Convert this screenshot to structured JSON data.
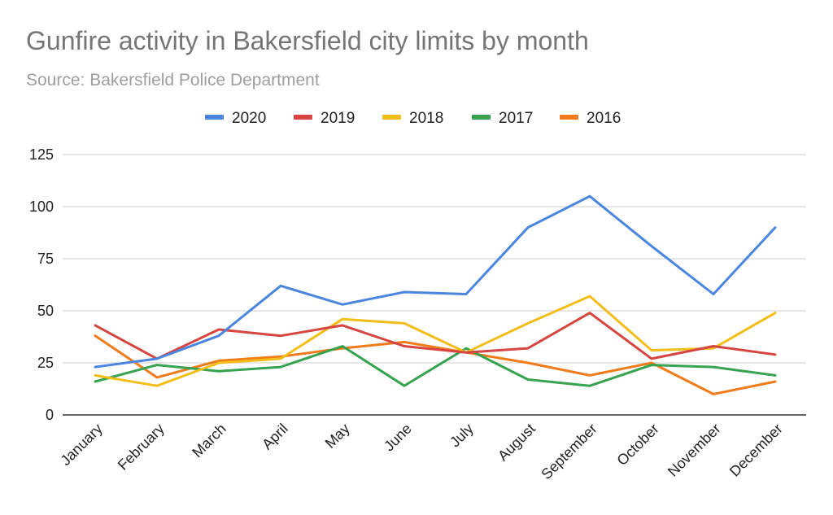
{
  "chart_data": {
    "type": "line",
    "title": "Gunfire activity in Bakersfield city limits by month",
    "subtitle": "Source: Bakersfield Police Department",
    "xlabel": "",
    "ylabel": "",
    "ylim": [
      0,
      125
    ],
    "yticks": [
      0,
      25,
      50,
      75,
      100,
      125
    ],
    "grid": true,
    "legend_position": "top",
    "categories": [
      "January",
      "February",
      "March",
      "April",
      "May",
      "June",
      "July",
      "August",
      "September",
      "October",
      "November",
      "December"
    ],
    "series": [
      {
        "name": "2020",
        "color": "#4a86e0",
        "values": [
          23,
          27,
          38,
          62,
          53,
          59,
          58,
          90,
          105,
          81,
          58,
          90
        ]
      },
      {
        "name": "2019",
        "color": "#d64540",
        "values": [
          43,
          27,
          41,
          38,
          43,
          33,
          30,
          32,
          49,
          27,
          33,
          29
        ]
      },
      {
        "name": "2018",
        "color": "#f2bd17",
        "values": [
          19,
          14,
          25,
          27,
          46,
          44,
          30,
          44,
          57,
          31,
          32,
          49
        ]
      },
      {
        "name": "2017",
        "color": "#37a24f",
        "values": [
          16,
          24,
          21,
          23,
          33,
          14,
          32,
          17,
          14,
          24,
          23,
          19
        ]
      },
      {
        "name": "2016",
        "color": "#f07b1b",
        "values": [
          38,
          18,
          26,
          28,
          32,
          35,
          30,
          25,
          19,
          25,
          10,
          16
        ]
      }
    ]
  }
}
